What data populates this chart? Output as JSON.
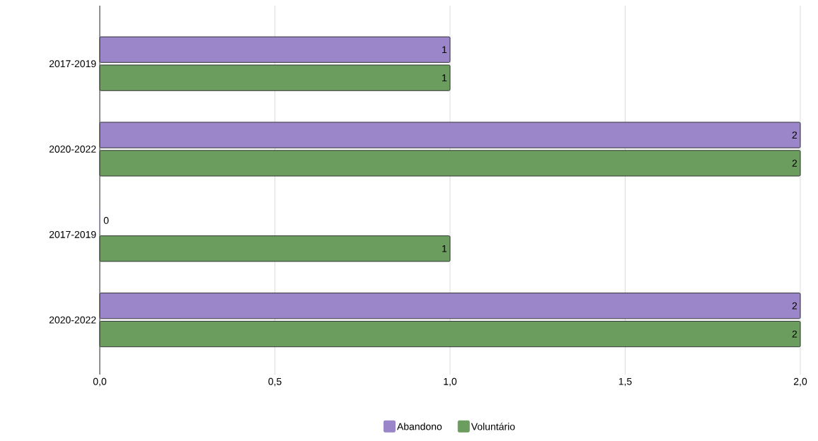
{
  "chart_data": {
    "type": "bar",
    "orientation": "horizontal",
    "categories": [
      "2017-2019",
      "2020-2022",
      "2017-2019",
      "2020-2022"
    ],
    "series": [
      {
        "name": "Abandono",
        "color": "#9a86c8",
        "values": [
          1,
          2,
          0,
          2
        ]
      },
      {
        "name": "Voluntário",
        "color": "#6b9e5e",
        "values": [
          1,
          2,
          1,
          2
        ]
      }
    ],
    "xlim": [
      0,
      2
    ],
    "xticks": [
      {
        "value": 0,
        "label": "0,0"
      },
      {
        "value": 0.5,
        "label": "0,5"
      },
      {
        "value": 1,
        "label": "1,0"
      },
      {
        "value": 1.5,
        "label": "1,5"
      },
      {
        "value": 2,
        "label": "2,0"
      }
    ],
    "grid": "x",
    "legend": "bottom",
    "data_labels": true
  }
}
